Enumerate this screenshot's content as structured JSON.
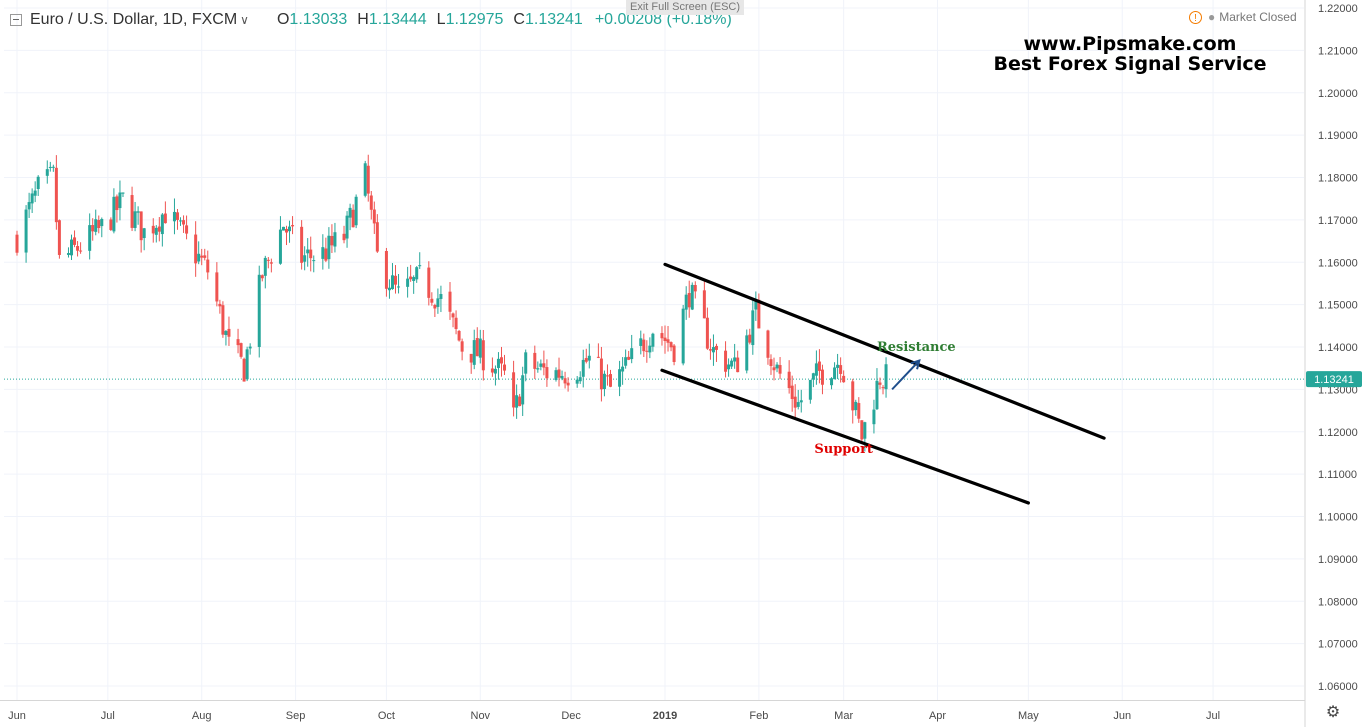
{
  "header": {
    "symbol": "Euro / U.S. Dollar, 1D, FXCM",
    "open_label": "O",
    "open": "1.13033",
    "high_label": "H",
    "high": "1.13444",
    "low_label": "L",
    "low": "1.12975",
    "close_label": "C",
    "close": "1.13241",
    "change": "+0.00208 (+0.18%)"
  },
  "exit_fullscreen": "Exit Full Screen (ESC)",
  "market_status": "Market Closed",
  "watermark": {
    "line1": "www.Pipsmake.com",
    "line2": "Best Forex Signal Service"
  },
  "colors": {
    "up": "#26a69a",
    "down": "#ef5350",
    "price_line": "#26a69a",
    "grid": "#f0f3fa",
    "resistance_label": "#2e7d32",
    "support_label": "#e00000",
    "arrow": "#1f4e8c"
  },
  "chart_data": {
    "type": "candlestick",
    "symbol": "EURUSD",
    "timeframe": "1D",
    "x_start": "2018-06-01",
    "x_end": "2018-07-01",
    "ylim": [
      1.056,
      1.222
    ],
    "y_ticks": [
      "1.22000",
      "1.21000",
      "1.20000",
      "1.19000",
      "1.18000",
      "1.17000",
      "1.16000",
      "1.15000",
      "1.14000",
      "1.13000",
      "1.12000",
      "1.11000",
      "1.10000",
      "1.09000",
      "1.08000",
      "1.07000",
      "1.06000"
    ],
    "x_ticks": [
      {
        "date": "2018-06-01",
        "label": "Jun"
      },
      {
        "date": "2018-07-01",
        "label": "Jul"
      },
      {
        "date": "2018-08-01",
        "label": "Aug"
      },
      {
        "date": "2018-09-01",
        "label": "Sep"
      },
      {
        "date": "2018-10-01",
        "label": "Oct"
      },
      {
        "date": "2018-11-01",
        "label": "Nov"
      },
      {
        "date": "2018-12-01",
        "label": "Dec"
      },
      {
        "date": "2019-01-01",
        "label": "2019"
      },
      {
        "date": "2019-02-01",
        "label": "Feb"
      },
      {
        "date": "2019-03-01",
        "label": "Mar"
      },
      {
        "date": "2019-04-01",
        "label": "Apr"
      },
      {
        "date": "2019-05-01",
        "label": "May"
      },
      {
        "date": "2019-06-01",
        "label": "Jun"
      },
      {
        "date": "2019-07-01",
        "label": "Jul"
      }
    ],
    "last_price": 1.13241,
    "last_price_label": "1.13241",
    "close_path": [
      [
        "2018-06-01",
        1.166
      ],
      [
        "2018-06-08",
        1.177
      ],
      [
        "2018-06-13",
        1.18
      ],
      [
        "2018-06-15",
        1.16
      ],
      [
        "2018-06-22",
        1.164
      ],
      [
        "2018-06-29",
        1.168
      ],
      [
        "2018-07-06",
        1.1745
      ],
      [
        "2018-07-13",
        1.167
      ],
      [
        "2018-07-20",
        1.172
      ],
      [
        "2018-07-27",
        1.165
      ],
      [
        "2018-08-03",
        1.158
      ],
      [
        "2018-08-10",
        1.14
      ],
      [
        "2018-08-15",
        1.135
      ],
      [
        "2018-08-21",
        1.157
      ],
      [
        "2018-08-28",
        1.169
      ],
      [
        "2018-09-03",
        1.161
      ],
      [
        "2018-09-10",
        1.162
      ],
      [
        "2018-09-17",
        1.166
      ],
      [
        "2018-09-24",
        1.18
      ],
      [
        "2018-09-28",
        1.161
      ],
      [
        "2018-10-05",
        1.152
      ],
      [
        "2018-10-12",
        1.156
      ],
      [
        "2018-10-19",
        1.151
      ],
      [
        "2018-10-26",
        1.14
      ],
      [
        "2018-11-02",
        1.138
      ],
      [
        "2018-11-09",
        1.133
      ],
      [
        "2018-11-12",
        1.123
      ],
      [
        "2018-11-16",
        1.136
      ],
      [
        "2018-11-23",
        1.134
      ],
      [
        "2018-11-30",
        1.134
      ],
      [
        "2018-12-07",
        1.137
      ],
      [
        "2018-12-14",
        1.13
      ],
      [
        "2018-12-21",
        1.137
      ],
      [
        "2018-12-28",
        1.1445
      ],
      [
        "2019-01-04",
        1.14
      ],
      [
        "2019-01-09",
        1.153
      ],
      [
        "2019-01-17",
        1.139
      ],
      [
        "2019-01-24",
        1.135
      ],
      [
        "2019-01-31",
        1.148
      ],
      [
        "2019-02-07",
        1.1345
      ],
      [
        "2019-02-14",
        1.1265
      ],
      [
        "2019-02-21",
        1.134
      ],
      [
        "2019-02-28",
        1.137
      ],
      [
        "2019-03-07",
        1.119
      ],
      [
        "2019-03-13",
        1.133
      ],
      [
        "2019-03-15",
        1.1324
      ]
    ],
    "annotations": [
      {
        "type": "trendline",
        "name": "resistance",
        "from": [
          "2019-01-01",
          1.1595
        ],
        "to": [
          "2019-05-26",
          1.1185
        ]
      },
      {
        "type": "trendline",
        "name": "support",
        "from": [
          "2018-12-31",
          1.1345
        ],
        "to": [
          "2019-05-01",
          1.1032
        ]
      },
      {
        "type": "text",
        "text": "Resistance",
        "at": [
          "2019-03-25",
          1.139
        ]
      },
      {
        "type": "text",
        "text": "Support",
        "at": [
          "2019-03-01",
          1.115
        ]
      },
      {
        "type": "arrow",
        "from": [
          "2019-03-17",
          1.13
        ],
        "to": [
          "2019-03-26",
          1.1368
        ]
      }
    ]
  }
}
